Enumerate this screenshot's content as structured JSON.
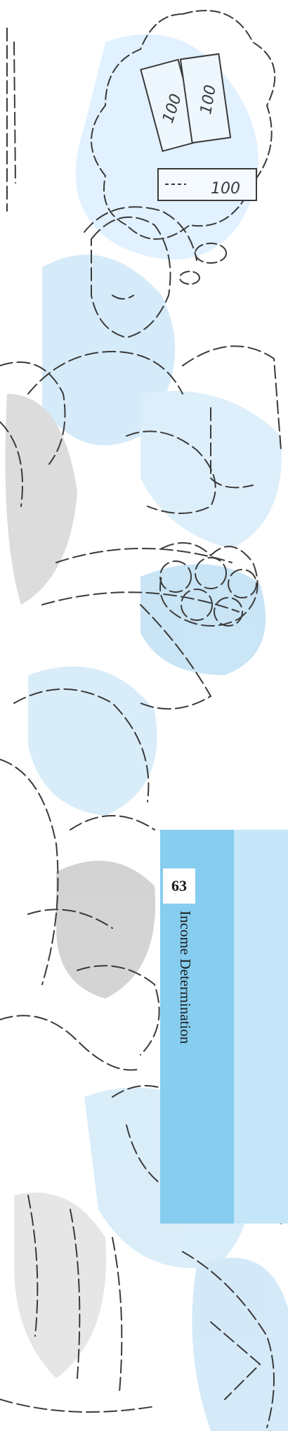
{
  "margin_tab": {
    "page_number": "63",
    "chapter_title": "Income Determination"
  },
  "illustration": {
    "banknote_text": [
      "100",
      "100",
      "100"
    ]
  },
  "colors": {
    "tab_dark": "#86cdf0",
    "tab_light": "#c4e6f8",
    "sketch_line": "#3a3a3a",
    "wash_blue": "#bfe0f4",
    "wash_grey": "#cfcfcf"
  }
}
